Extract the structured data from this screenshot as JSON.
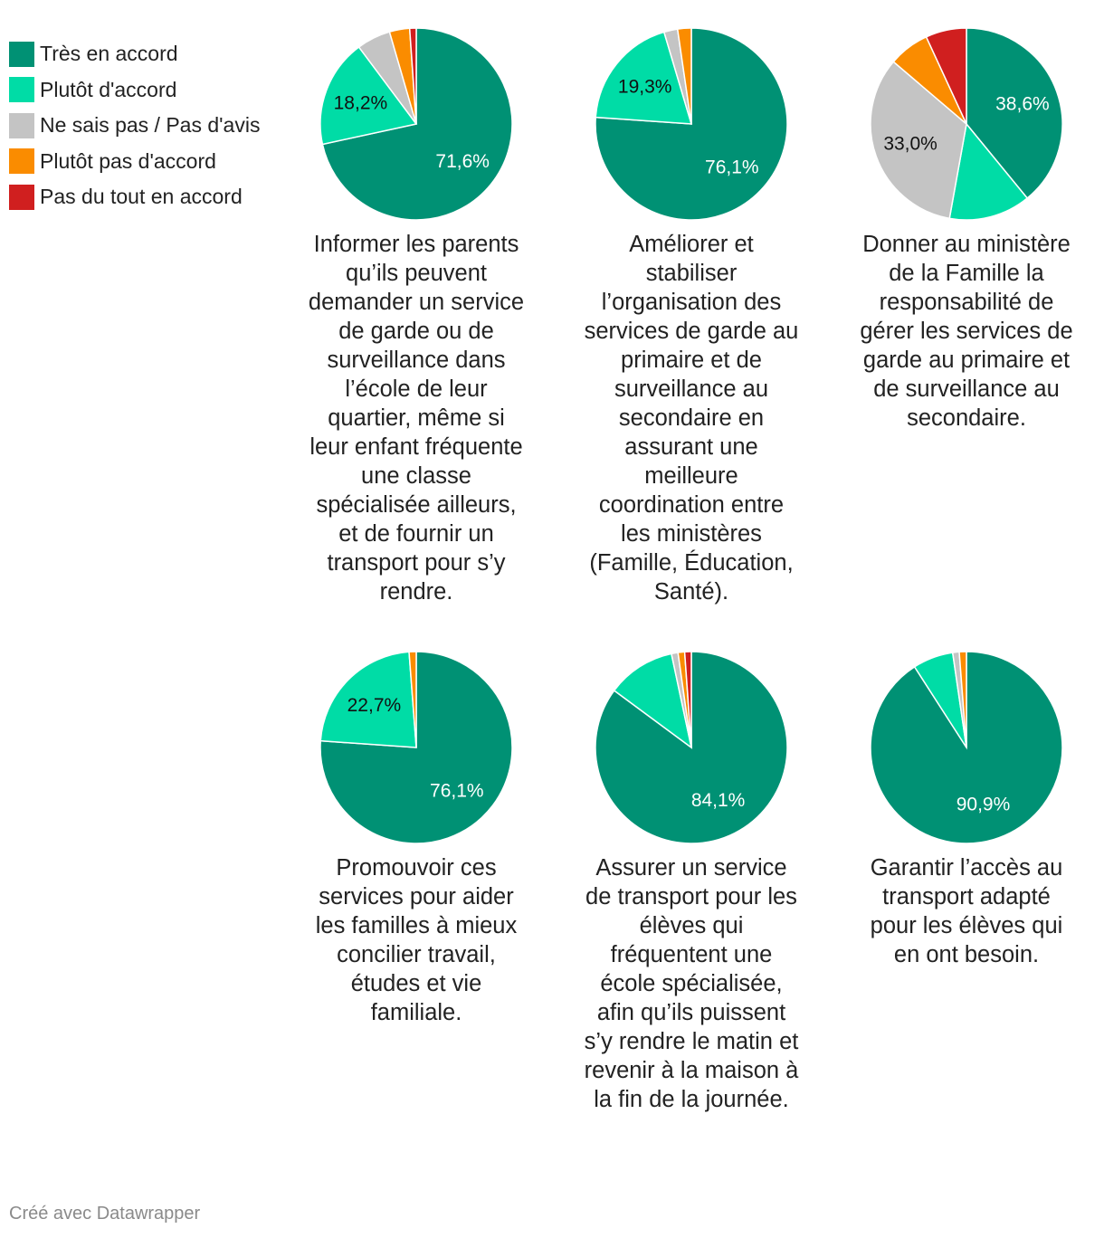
{
  "legend": {
    "items": [
      {
        "label": "Très en accord",
        "color": "#009174"
      },
      {
        "label": "Plutôt d'accord",
        "color": "#00dca6"
      },
      {
        "label": "Ne sais pas / Pas d'avis",
        "color": "#c4c4c4"
      },
      {
        "label": "Plutôt pas d'accord",
        "color": "#fa8c00"
      },
      {
        "label": "Pas du tout en accord",
        "color": "#d01f1f"
      }
    ]
  },
  "chart_data": {
    "type": "pie",
    "categories": [
      "Très en accord",
      "Plutôt d'accord",
      "Ne sais pas / Pas d'avis",
      "Plutôt pas d'accord",
      "Pas du tout en accord"
    ],
    "charts": [
      {
        "caption": "Informer les parents qu’ils peuvent demander un service de garde ou de surveillance dans l’école de leur quartier, même si leur enfant fréquente une classe spécialisée ailleurs, et de fournir un transport pour s’y rendre.",
        "values": [
          71.6,
          18.2,
          5.7,
          3.4,
          1.1
        ],
        "labels": [
          "71,6%",
          "18,2%",
          "",
          "",
          ""
        ]
      },
      {
        "caption": "Améliorer et stabiliser l’organisation des services de garde au primaire et de surveillance au secondaire en assurant une meilleure coordination entre les ministères (Famille, Éducation, Santé).",
        "values": [
          76.1,
          19.3,
          2.3,
          2.3,
          0
        ],
        "labels": [
          "76,1%",
          "19,3%",
          "",
          "",
          ""
        ]
      },
      {
        "caption": "Donner au ministère de la Famille la responsabilité de gérer les services de garde au primaire et de surveillance au secondaire.",
        "values": [
          38.6,
          13.6,
          33.0,
          6.8,
          6.8
        ],
        "labels": [
          "38,6%",
          "",
          "33,0%",
          "",
          ""
        ]
      },
      {
        "caption": "Promouvoir ces services pour aider les familles à mieux concilier travail, études et vie familiale.",
        "values": [
          76.1,
          22.7,
          0,
          1.2,
          0
        ],
        "labels": [
          "76,1%",
          "22,7%",
          "",
          "",
          ""
        ]
      },
      {
        "caption": "Assurer un service de transport pour les élèves qui fréquentent une école spécialisée, afin qu’ils puissent s’y rendre le matin et revenir à la maison à la fin de la journée.",
        "values": [
          84.1,
          11.4,
          1.1,
          1.1,
          1.1
        ],
        "labels": [
          "84,1%",
          "",
          "",
          "",
          ""
        ]
      },
      {
        "caption": "Garantir l’accès au transport adapté pour les élèves qui en ont besoin.",
        "values": [
          90.9,
          6.8,
          1.1,
          1.2,
          0
        ],
        "labels": [
          "90,9%",
          "",
          "",
          "",
          ""
        ]
      }
    ]
  },
  "footer": {
    "credit": "Créé avec Datawrapper"
  }
}
